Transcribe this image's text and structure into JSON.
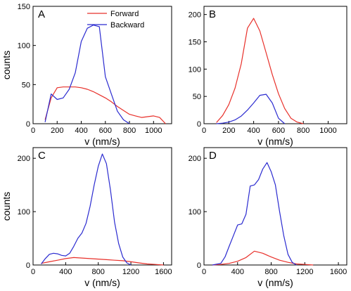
{
  "colors": {
    "forward": "#e8302a",
    "backward": "#2b2bd0"
  },
  "legend": {
    "forward": "Forward",
    "backward": "Backward"
  },
  "chart_data": [
    {
      "id": "A",
      "type": "line",
      "panel_label": "A",
      "xlabel": "v (nm/s)",
      "ylabel": "counts",
      "xlim": [
        0,
        1150
      ],
      "ylim": [
        0,
        150
      ],
      "xticks": [
        0,
        200,
        400,
        600,
        800,
        1000
      ],
      "yticks": [
        0,
        50,
        100,
        150
      ],
      "series": [
        {
          "name": "Forward",
          "color": "forward",
          "x": [
            100,
            150,
            200,
            250,
            300,
            350,
            400,
            450,
            500,
            550,
            600,
            650,
            700,
            750,
            800,
            850,
            900,
            950,
            1000,
            1050,
            1100
          ],
          "y": [
            5,
            33,
            46,
            47,
            47,
            47,
            46,
            44,
            41,
            37,
            33,
            28,
            22,
            17,
            12,
            10,
            8,
            9,
            10,
            8,
            0
          ]
        },
        {
          "name": "Backward",
          "color": "backward",
          "x": [
            100,
            150,
            200,
            250,
            300,
            350,
            400,
            450,
            500,
            550,
            600,
            650,
            700,
            750,
            800
          ],
          "y": [
            2,
            38,
            31,
            33,
            44,
            65,
            105,
            122,
            126,
            124,
            60,
            38,
            16,
            5,
            0
          ]
        }
      ]
    },
    {
      "id": "B",
      "type": "line",
      "panel_label": "B",
      "xlabel": "v (nm/s)",
      "ylabel": "",
      "xlim": [
        0,
        1150
      ],
      "ylim": [
        0,
        215
      ],
      "xticks": [
        0,
        200,
        400,
        600,
        800,
        1000
      ],
      "yticks": [
        0,
        50,
        100,
        150,
        200
      ],
      "series": [
        {
          "name": "Forward",
          "color": "forward",
          "x": [
            100,
            150,
            200,
            250,
            300,
            350,
            400,
            450,
            500,
            550,
            600,
            650,
            700,
            750,
            800
          ],
          "y": [
            2,
            15,
            35,
            65,
            110,
            175,
            193,
            170,
            130,
            90,
            55,
            28,
            10,
            3,
            0
          ]
        },
        {
          "name": "Backward",
          "color": "backward",
          "x": [
            100,
            150,
            200,
            250,
            300,
            350,
            400,
            450,
            500,
            550,
            600,
            650
          ],
          "y": [
            0,
            1,
            3,
            7,
            14,
            25,
            38,
            52,
            54,
            38,
            10,
            0
          ]
        }
      ]
    },
    {
      "id": "C",
      "type": "line",
      "panel_label": "C",
      "xlabel": "v (nm/s)",
      "ylabel": "counts",
      "xlim": [
        0,
        1700
      ],
      "ylim": [
        0,
        220
      ],
      "xticks": [
        0,
        400,
        800,
        1200,
        1600
      ],
      "yticks": [
        0,
        100,
        200
      ],
      "series": [
        {
          "name": "Forward",
          "color": "forward",
          "x": [
            100,
            200,
            300,
            400,
            500,
            600,
            700,
            800,
            900,
            1000,
            1100,
            1200,
            1300,
            1400,
            1500,
            1600
          ],
          "y": [
            3,
            6,
            9,
            12,
            14,
            13,
            12,
            11,
            10,
            9,
            8,
            6,
            4,
            2,
            1,
            0
          ]
        },
        {
          "name": "Backward",
          "color": "backward",
          "x": [
            100,
            150,
            200,
            250,
            300,
            350,
            400,
            450,
            500,
            550,
            600,
            650,
            700,
            750,
            800,
            850,
            900,
            950,
            1000,
            1050,
            1100,
            1150,
            1200
          ],
          "y": [
            2,
            12,
            20,
            22,
            21,
            18,
            17,
            22,
            35,
            50,
            60,
            78,
            110,
            150,
            185,
            208,
            190,
            140,
            80,
            40,
            15,
            4,
            0
          ]
        }
      ]
    },
    {
      "id": "D",
      "type": "line",
      "panel_label": "D",
      "xlabel": "v (nm/s)",
      "ylabel": "",
      "xlim": [
        0,
        1700
      ],
      "ylim": [
        0,
        220
      ],
      "xticks": [
        0,
        400,
        800,
        1200,
        1600
      ],
      "yticks": [
        0,
        100,
        200
      ],
      "series": [
        {
          "name": "Forward",
          "color": "forward",
          "x": [
            100,
            200,
            300,
            400,
            500,
            600,
            700,
            800,
            900,
            1000,
            1100,
            1200,
            1300
          ],
          "y": [
            0,
            1,
            3,
            7,
            14,
            26,
            22,
            15,
            9,
            5,
            2,
            1,
            0
          ]
        },
        {
          "name": "Backward",
          "color": "backward",
          "x": [
            100,
            200,
            250,
            300,
            350,
            400,
            450,
            500,
            550,
            600,
            650,
            700,
            750,
            800,
            850,
            900,
            950,
            1000,
            1050,
            1100
          ],
          "y": [
            0,
            3,
            15,
            35,
            55,
            75,
            77,
            95,
            148,
            150,
            160,
            180,
            192,
            175,
            150,
            100,
            55,
            20,
            5,
            0
          ]
        }
      ]
    }
  ]
}
